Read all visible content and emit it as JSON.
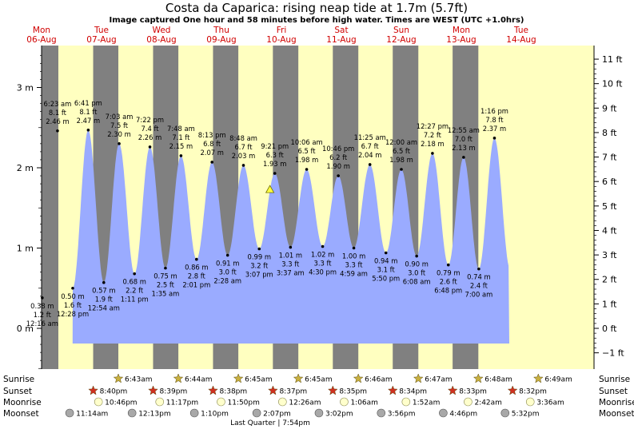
{
  "chart_data": {
    "type": "area",
    "title": "Costa da Caparica: rising  neap tide at 1.7m (5.7ft)",
    "subtitle": "Image captured One hour and 58 minutes before high water. Times are WEST (UTC +1.0hrs)",
    "days": [
      {
        "dow": "Mon",
        "date": "06-Aug",
        "t": 0
      },
      {
        "dow": "Tue",
        "date": "07-Aug",
        "t": 24
      },
      {
        "dow": "Wed",
        "date": "08-Aug",
        "t": 48
      },
      {
        "dow": "Thu",
        "date": "09-Aug",
        "t": 72
      },
      {
        "dow": "Fri",
        "date": "10-Aug",
        "t": 96
      },
      {
        "dow": "Sat",
        "date": "11-Aug",
        "t": 120
      },
      {
        "dow": "Sun",
        "date": "12-Aug",
        "t": 144
      },
      {
        "dow": "Mon",
        "date": "13-Aug",
        "t": 168
      },
      {
        "dow": "Tue",
        "date": "14-Aug",
        "t": 192
      }
    ],
    "y_axis_m": {
      "range": [
        -0.55,
        3.5
      ],
      "ticks": [
        {
          "v": 0,
          "label": "0 m"
        },
        {
          "v": 1,
          "label": "1 m"
        },
        {
          "v": 2,
          "label": "2 m"
        },
        {
          "v": 3,
          "label": "3 m"
        }
      ]
    },
    "y_axis_ft": {
      "ticks": [
        "−1 ft",
        "0 ft",
        "1 ft",
        "2 ft",
        "3 ft",
        "4 ft",
        "5 ft",
        "6 ft",
        "7 ft",
        "8 ft",
        "9 ft",
        "10 ft",
        "11 ft"
      ]
    },
    "tides": [
      {
        "type": "low",
        "time": "12:16 am",
        "ft": "1.2 ft",
        "m": "0.38 m",
        "h": 0.38,
        "t": 0.27
      },
      {
        "type": "high",
        "time": "6:23 am",
        "ft": "8.1 ft",
        "m": "2.46 m",
        "h": 2.46,
        "t": 6.38
      },
      {
        "type": "low",
        "time": "12:28 pm",
        "ft": "1.6 ft",
        "m": "0.50 m",
        "h": 0.5,
        "t": 12.47
      },
      {
        "type": "high",
        "time": "6:41 pm",
        "ft": "8.1 ft",
        "m": "2.47 m",
        "h": 2.47,
        "t": 18.68
      },
      {
        "type": "low",
        "time": "12:54 am",
        "ft": "1.9 ft",
        "m": "0.57 m",
        "h": 0.57,
        "t": 24.9
      },
      {
        "type": "high",
        "time": "7:03 am",
        "ft": "7.5 ft",
        "m": "2.30 m",
        "h": 2.3,
        "t": 31.05
      },
      {
        "type": "low",
        "time": "1:11 pm",
        "ft": "2.2 ft",
        "m": "0.68 m",
        "h": 0.68,
        "t": 37.18
      },
      {
        "type": "high",
        "time": "7:22 pm",
        "ft": "7.4 ft",
        "m": "2.26 m",
        "h": 2.26,
        "t": 43.37
      },
      {
        "type": "low",
        "time": "1:35 am",
        "ft": "2.5 ft",
        "m": "0.75 m",
        "h": 0.75,
        "t": 49.58
      },
      {
        "type": "high",
        "time": "7:48 am",
        "ft": "7.1 ft",
        "m": "2.15 m",
        "h": 2.15,
        "t": 55.8
      },
      {
        "type": "low",
        "time": "2:01 pm",
        "ft": "2.8 ft",
        "m": "0.86 m",
        "h": 0.86,
        "t": 62.02
      },
      {
        "type": "high",
        "time": "8:13 pm",
        "ft": "6.8 ft",
        "m": "2.07 m",
        "h": 2.07,
        "t": 68.22
      },
      {
        "type": "low",
        "time": "2:28 am",
        "ft": "3.0 ft",
        "m": "0.91 m",
        "h": 0.91,
        "t": 74.47
      },
      {
        "type": "high",
        "time": "8:48 am",
        "ft": "6.7 ft",
        "m": "2.03 m",
        "h": 2.03,
        "t": 80.8
      },
      {
        "type": "low",
        "time": "3:07 pm",
        "ft": "3.2 ft",
        "m": "0.99 m",
        "h": 0.99,
        "t": 87.12
      },
      {
        "type": "high",
        "time": "9:21 pm",
        "ft": "6.3 ft",
        "m": "1.93 m",
        "h": 1.93,
        "t": 93.35
      },
      {
        "type": "low",
        "time": "3:37 am",
        "ft": "3.3 ft",
        "m": "1.01 m",
        "h": 1.01,
        "t": 99.62
      },
      {
        "type": "high",
        "time": "10:06 am",
        "ft": "6.5 ft",
        "m": "1.98 m",
        "h": 1.98,
        "t": 106.1
      },
      {
        "type": "low",
        "time": "4:30 pm",
        "ft": "3.3 ft",
        "m": "1.02 m",
        "h": 1.02,
        "t": 112.5
      },
      {
        "type": "high",
        "time": "10:46 pm",
        "ft": "6.2 ft",
        "m": "1.90 m",
        "h": 1.9,
        "t": 118.77
      },
      {
        "type": "low",
        "time": "4:59 am",
        "ft": "3.3 ft",
        "m": "1.00 m",
        "h": 1.0,
        "t": 124.98
      },
      {
        "type": "high",
        "time": "11:25 am",
        "ft": "6.7 ft",
        "m": "2.04 m",
        "h": 2.04,
        "t": 131.42
      },
      {
        "type": "low",
        "time": "5:50 pm",
        "ft": "3.1 ft",
        "m": "0.94 m",
        "h": 0.94,
        "t": 137.83
      },
      {
        "type": "high",
        "time": "12:00 am",
        "ft": "6.5 ft",
        "m": "1.98 m",
        "h": 1.98,
        "t": 144.0
      },
      {
        "type": "low",
        "time": "6:08 am",
        "ft": "3.0 ft",
        "m": "0.90 m",
        "h": 0.9,
        "t": 150.13
      },
      {
        "type": "high",
        "time": "12:27 pm",
        "ft": "7.2 ft",
        "m": "2.18 m",
        "h": 2.18,
        "t": 156.45
      },
      {
        "type": "low",
        "time": "6:48 pm",
        "ft": "2.6 ft",
        "m": "0.79 m",
        "h": 0.79,
        "t": 162.8
      },
      {
        "type": "high",
        "time": "12:55 am",
        "ft": "7.0 ft",
        "m": "2.13 m",
        "h": 2.13,
        "t": 168.92
      },
      {
        "type": "low",
        "time": "7:00 am",
        "ft": "2.4 ft",
        "m": "0.74 m",
        "h": 0.74,
        "t": 175.0
      },
      {
        "type": "high",
        "time": "1:16 pm",
        "ft": "7.8 ft",
        "m": "2.37 m",
        "h": 2.37,
        "t": 181.27
      }
    ],
    "current": {
      "h": 1.7,
      "t": 91.4
    },
    "nights": [
      {
        "start": -3.68,
        "end": 6.72
      },
      {
        "start": 20.65,
        "end": 30.73
      },
      {
        "start": 44.63,
        "end": 54.75
      },
      {
        "start": 68.62,
        "end": 78.75
      },
      {
        "start": 92.58,
        "end": 102.77
      },
      {
        "start": 116.57,
        "end": 126.78
      },
      {
        "start": 140.55,
        "end": 150.8
      },
      {
        "start": 164.52,
        "end": 174.82
      }
    ],
    "astro": {
      "row_labels": [
        "Sunrise",
        "Sunset",
        "Moonrise",
        "Moonset"
      ],
      "sunrise": [
        {
          "t": 30.72,
          "label": "6:43am"
        },
        {
          "t": 54.73,
          "label": "6:44am"
        },
        {
          "t": 78.75,
          "label": "6:45am"
        },
        {
          "t": 102.75,
          "label": "6:45am"
        },
        {
          "t": 126.77,
          "label": "6:46am"
        },
        {
          "t": 150.78,
          "label": "6:47am"
        },
        {
          "t": 174.8,
          "label": "6:48am"
        },
        {
          "t": 198.82,
          "label": "6:49am"
        }
      ],
      "sunset": [
        {
          "t": 20.67,
          "label": "8:40pm"
        },
        {
          "t": 44.65,
          "label": "8:39pm"
        },
        {
          "t": 68.63,
          "label": "8:38pm"
        },
        {
          "t": 92.62,
          "label": "8:37pm"
        },
        {
          "t": 116.58,
          "label": "8:35pm"
        },
        {
          "t": 140.57,
          "label": "8:34pm"
        },
        {
          "t": 164.55,
          "label": "8:33pm"
        },
        {
          "t": 188.53,
          "label": "8:32pm"
        }
      ],
      "moonrise": [
        {
          "t": 22.77,
          "label": "10:46pm"
        },
        {
          "t": 47.28,
          "label": "11:17pm"
        },
        {
          "t": 71.83,
          "label": "11:50pm"
        },
        {
          "t": 96.43,
          "label": "12:26am"
        },
        {
          "t": 121.1,
          "label": "1:06am"
        },
        {
          "t": 145.87,
          "label": "1:52am"
        },
        {
          "t": 170.7,
          "label": "2:42am"
        },
        {
          "t": 195.6,
          "label": "3:36am"
        }
      ],
      "moonset": [
        {
          "t": 11.23,
          "label": "11:14am"
        },
        {
          "t": 36.22,
          "label": "12:13pm"
        },
        {
          "t": 61.17,
          "label": "1:10pm"
        },
        {
          "t": 86.12,
          "label": "2:07pm"
        },
        {
          "t": 111.03,
          "label": "3:02pm"
        },
        {
          "t": 135.93,
          "label": "3:56pm"
        },
        {
          "t": 160.77,
          "label": "4:46pm"
        },
        {
          "t": 185.53,
          "label": "5:32pm"
        }
      ],
      "phase_note": "Last Quarter | 7:54pm"
    },
    "colors": {
      "day": "#ffffc0",
      "night": "#808080",
      "water": "#9aabff",
      "sun": "#c8b040",
      "sunset": "#d03020",
      "moon": "#ffffcc",
      "moonset": "#a8a8a8"
    }
  }
}
